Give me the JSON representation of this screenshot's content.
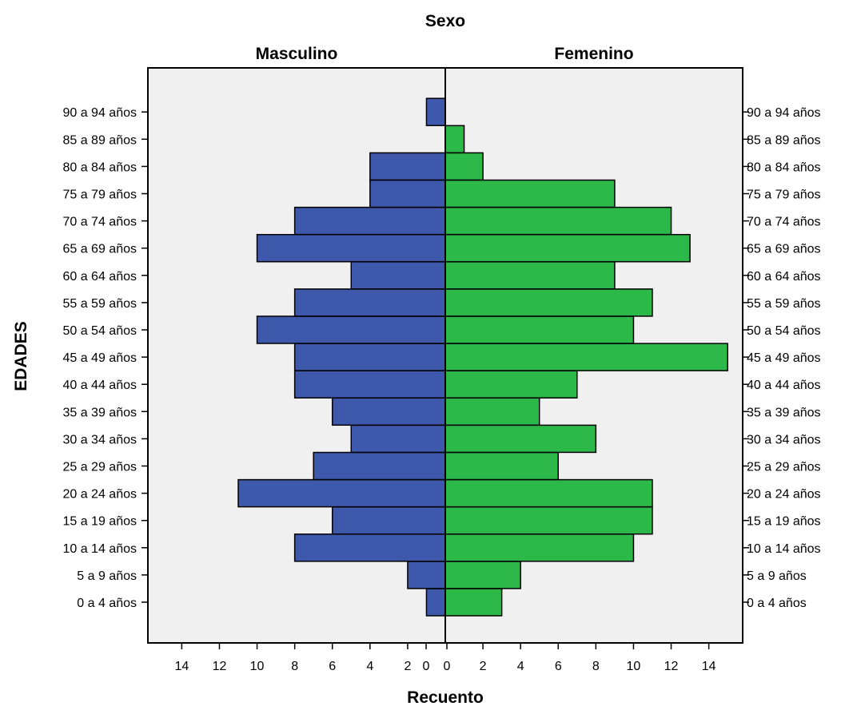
{
  "chart_data": {
    "type": "bar",
    "orientation": "horizontal",
    "layout": "population-pyramid",
    "title": "Sexo",
    "xlabel": "Recuento",
    "ylabel": "EDADES",
    "categories": [
      "0 a 4 años",
      "5 a 9 años",
      "10 a 14 años",
      "15 a 19 años",
      "20 a 24 años",
      "25 a 29 años",
      "30 a 34 años",
      "35 a 39 años",
      "40 a 44 años",
      "45 a 49 años",
      "50 a 54 años",
      "55 a 59 años",
      "60 a 64 años",
      "65 a 69 años",
      "70 a 74 años",
      "75 a 79 años",
      "80 a 84 años",
      "85 a 89 años",
      "90 a 94 años"
    ],
    "series": [
      {
        "name": "Masculino",
        "color": "#3e58ac",
        "values": [
          1,
          2,
          8,
          6,
          11,
          7,
          5,
          6,
          8,
          8,
          10,
          8,
          5,
          10,
          8,
          4,
          4,
          0,
          1
        ]
      },
      {
        "name": "Femenino",
        "color": "#2db84a",
        "values": [
          3,
          4,
          10,
          11,
          11,
          6,
          8,
          5,
          7,
          15,
          10,
          11,
          9,
          13,
          12,
          9,
          2,
          1,
          0
        ]
      }
    ],
    "xlim": [
      0,
      15.8
    ],
    "xticks": [
      0,
      2,
      4,
      6,
      8,
      10,
      12,
      14
    ],
    "plot_background": "#f0f0f0",
    "grid": false
  }
}
